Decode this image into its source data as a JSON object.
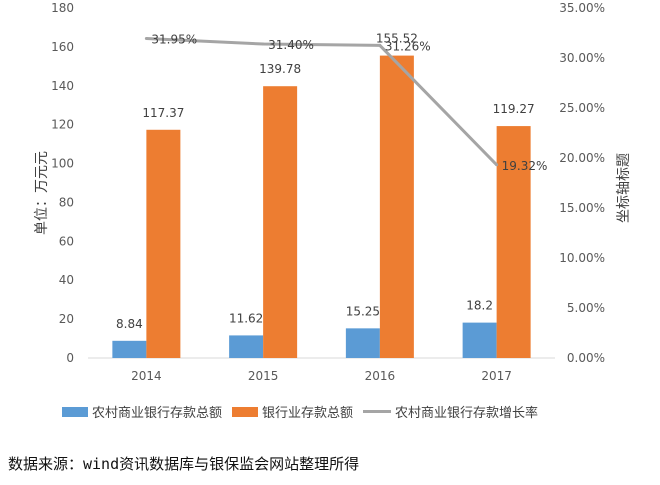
{
  "chart_data": {
    "type": "bar",
    "categories": [
      "2014",
      "2015",
      "2016",
      "2017"
    ],
    "series": [
      {
        "name": "农村商业银行存款总额",
        "kind": "bar",
        "axis": "left",
        "color": "#5B9BD5",
        "values": [
          8.84,
          11.62,
          15.25,
          18.2
        ],
        "labels": [
          "8.84",
          "11.62",
          "15.25",
          "18.2"
        ]
      },
      {
        "name": "银行业存款总额",
        "kind": "bar",
        "axis": "left",
        "color": "#ED7D31",
        "values": [
          117.37,
          139.78,
          155.52,
          119.27
        ],
        "labels": [
          "117.37",
          "139.78",
          "155.52",
          "119.27"
        ]
      },
      {
        "name": "农村商业银行存款增长率",
        "kind": "line",
        "axis": "right",
        "color": "#A5A5A5",
        "values": [
          31.95,
          31.4,
          31.26,
          19.32
        ],
        "labels": [
          "31.95%",
          "31.40%",
          "31.26%",
          "19.32%"
        ]
      }
    ],
    "ylabel": "单位：万元元",
    "y2label": "坐标轴标题",
    "ylim": [
      0,
      180
    ],
    "y2lim": [
      0,
      35
    ],
    "yticks": [
      "0",
      "20",
      "40",
      "60",
      "80",
      "100",
      "120",
      "140",
      "160",
      "180"
    ],
    "y2ticks": [
      "0.00%",
      "5.00%",
      "10.00%",
      "15.00%",
      "20.00%",
      "25.00%",
      "30.00%",
      "35.00%"
    ],
    "grid": false,
    "legend": "bottom"
  },
  "source_note": "数据来源：wind资讯数据库与银保监会网站整理所得"
}
